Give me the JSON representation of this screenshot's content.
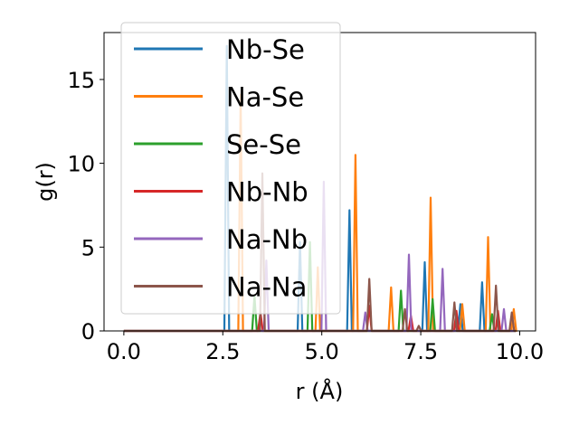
{
  "chart_data": {
    "type": "line",
    "title": "",
    "xlabel": "r (Å)",
    "ylabel": "g(r)",
    "xlim": [
      -0.5,
      10.4
    ],
    "ylim": [
      0,
      17.8
    ],
    "xticks": [
      0.0,
      2.5,
      5.0,
      7.5,
      10.0
    ],
    "xtick_labels": [
      "0.0",
      "2.5",
      "5.0",
      "7.5",
      "10.0"
    ],
    "yticks": [
      0,
      5,
      10,
      15
    ],
    "ytick_labels": [
      "0",
      "5",
      "10",
      "15"
    ],
    "grid": false,
    "legend_position": "top-left",
    "series": [
      {
        "name": "Nb-Se",
        "color": "#1f77b4",
        "peaks": [
          [
            2.6,
            17.0
          ],
          [
            4.45,
            5.3
          ],
          [
            5.7,
            7.2
          ],
          [
            7.6,
            4.1
          ],
          [
            8.5,
            1.6
          ],
          [
            9.05,
            2.9
          ]
        ]
      },
      {
        "name": "Na-Se",
        "color": "#ff7f0e",
        "peaks": [
          [
            2.95,
            14.1
          ],
          [
            4.9,
            3.8
          ],
          [
            5.85,
            10.5
          ],
          [
            6.75,
            2.6
          ],
          [
            7.75,
            7.95
          ],
          [
            8.55,
            1.6
          ],
          [
            9.2,
            5.6
          ],
          [
            9.85,
            1.3
          ]
        ]
      },
      {
        "name": "Se-Se",
        "color": "#2ca02c",
        "peaks": [
          [
            3.3,
            2.1
          ],
          [
            4.7,
            5.3
          ],
          [
            7.0,
            2.4
          ],
          [
            7.8,
            1.9
          ],
          [
            9.3,
            1.0
          ]
        ]
      },
      {
        "name": "Nb-Nb",
        "color": "#d62728",
        "peaks": [
          [
            3.45,
            1.1
          ],
          [
            6.2,
            1.5
          ],
          [
            7.25,
            0.9
          ],
          [
            8.4,
            1.2
          ],
          [
            9.45,
            1.2
          ]
        ]
      },
      {
        "name": "Na-Nb",
        "color": "#9467bd",
        "peaks": [
          [
            3.6,
            4.2
          ],
          [
            5.05,
            8.9
          ],
          [
            6.1,
            1.1
          ],
          [
            7.2,
            4.55
          ],
          [
            8.05,
            3.7
          ],
          [
            9.6,
            1.3
          ]
        ]
      },
      {
        "name": "Na-Na",
        "color": "#8c564b",
        "peaks": [
          [
            3.5,
            9.4
          ],
          [
            6.2,
            3.1
          ],
          [
            7.1,
            1.3
          ],
          [
            7.45,
            0.3
          ],
          [
            8.35,
            1.7
          ],
          [
            9.4,
            2.7
          ],
          [
            9.8,
            1.1
          ]
        ]
      }
    ]
  }
}
